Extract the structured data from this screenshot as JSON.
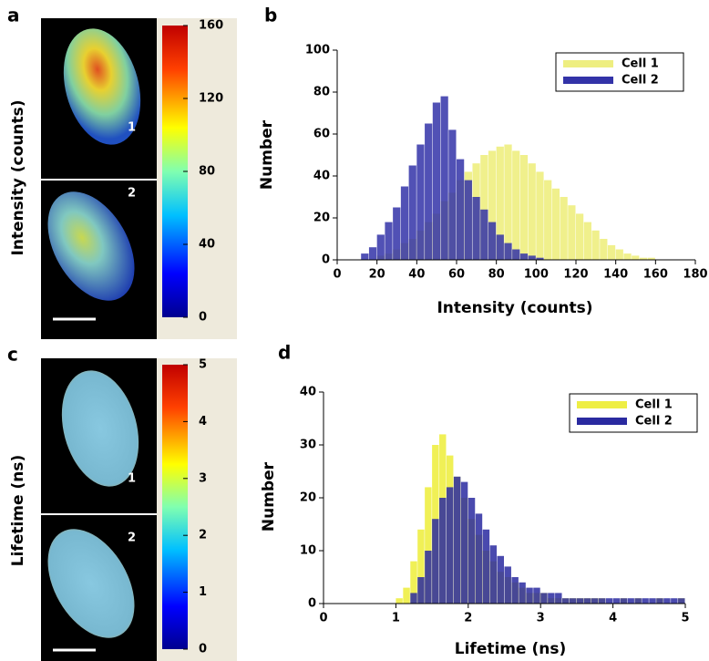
{
  "images": [
    {
      "panel_label": "a",
      "ylabel": "Intensity (counts)",
      "cells": [
        "1",
        "2"
      ],
      "colorbar_ticks": [
        0,
        40,
        80,
        120,
        160
      ]
    },
    {
      "panel_label": "c",
      "ylabel": "Lifetime (ns)",
      "cells": [
        "1",
        "2"
      ],
      "colorbar_ticks": [
        0,
        1,
        2,
        3,
        4,
        5
      ]
    }
  ],
  "chart_data": [
    {
      "type": "histogram",
      "panel_label": "b",
      "xlabel": "Intensity (counts)",
      "ylabel": "Number",
      "xlim": [
        0,
        180
      ],
      "xticks": [
        0,
        20,
        40,
        60,
        80,
        100,
        120,
        140,
        160,
        180
      ],
      "ylim": [
        0,
        100
      ],
      "yticks": [
        0,
        20,
        40,
        60,
        80,
        100
      ],
      "legend": "upper right",
      "bins": [
        12,
        16,
        20,
        24,
        28,
        32,
        36,
        40,
        44,
        48,
        52,
        56,
        60,
        64,
        68,
        72,
        76,
        80,
        84,
        88,
        92,
        96,
        100,
        104,
        108,
        112,
        116,
        120,
        124,
        128,
        132,
        136,
        140,
        144,
        148,
        152,
        156,
        160,
        164
      ],
      "series": [
        {
          "name": "Cell 1",
          "color": "#eeee80",
          "values": [
            0,
            0,
            2,
            3,
            5,
            8,
            10,
            14,
            18,
            22,
            28,
            32,
            38,
            42,
            46,
            50,
            52,
            54,
            55,
            52,
            50,
            46,
            42,
            38,
            34,
            30,
            26,
            22,
            18,
            14,
            10,
            7,
            5,
            3,
            2,
            1,
            1,
            0
          ]
        },
        {
          "name": "Cell 2",
          "color": "#3333a8",
          "values": [
            3,
            6,
            12,
            18,
            25,
            35,
            45,
            55,
            65,
            75,
            78,
            62,
            48,
            38,
            30,
            24,
            18,
            12,
            8,
            5,
            3,
            2,
            1,
            0,
            0,
            0,
            0,
            0,
            0,
            0,
            0,
            0,
            0,
            0,
            0,
            0,
            0,
            0
          ]
        }
      ]
    },
    {
      "type": "histogram",
      "panel_label": "d",
      "xlabel": "Lifetime (ns)",
      "ylabel": "Number",
      "xlim": [
        0,
        5
      ],
      "xticks": [
        0,
        1,
        2,
        3,
        4,
        5
      ],
      "ylim": [
        0,
        40
      ],
      "yticks": [
        0,
        10,
        20,
        30,
        40
      ],
      "legend": "upper right",
      "bins": [
        1.0,
        1.1,
        1.2,
        1.3,
        1.4,
        1.5,
        1.6,
        1.7,
        1.8,
        1.9,
        2.0,
        2.1,
        2.2,
        2.3,
        2.4,
        2.5,
        2.6,
        2.7,
        2.8,
        2.9,
        3.0,
        3.1,
        3.2,
        3.3,
        3.4,
        3.5,
        3.6,
        3.7,
        3.8,
        3.9,
        4.0,
        4.1,
        4.2,
        4.3,
        4.4,
        4.5,
        4.6,
        4.7,
        4.8,
        4.9,
        5.0
      ],
      "series": [
        {
          "name": "Cell 1",
          "color": "#eeee44",
          "values": [
            1,
            3,
            8,
            14,
            22,
            30,
            32,
            28,
            24,
            20,
            16,
            13,
            10,
            8,
            6,
            5,
            4,
            3,
            2,
            2,
            2,
            1,
            1,
            1,
            1,
            1,
            1,
            1,
            1,
            0,
            0,
            1,
            0,
            1,
            0,
            0,
            1,
            0,
            0,
            1
          ]
        },
        {
          "name": "Cell 2",
          "color": "#2a2aa0",
          "values": [
            0,
            0,
            2,
            5,
            10,
            16,
            20,
            22,
            24,
            23,
            20,
            17,
            14,
            11,
            9,
            7,
            5,
            4,
            3,
            3,
            2,
            2,
            2,
            1,
            1,
            1,
            1,
            1,
            1,
            1,
            1,
            1,
            1,
            1,
            1,
            1,
            1,
            1,
            1,
            1
          ]
        }
      ]
    }
  ]
}
